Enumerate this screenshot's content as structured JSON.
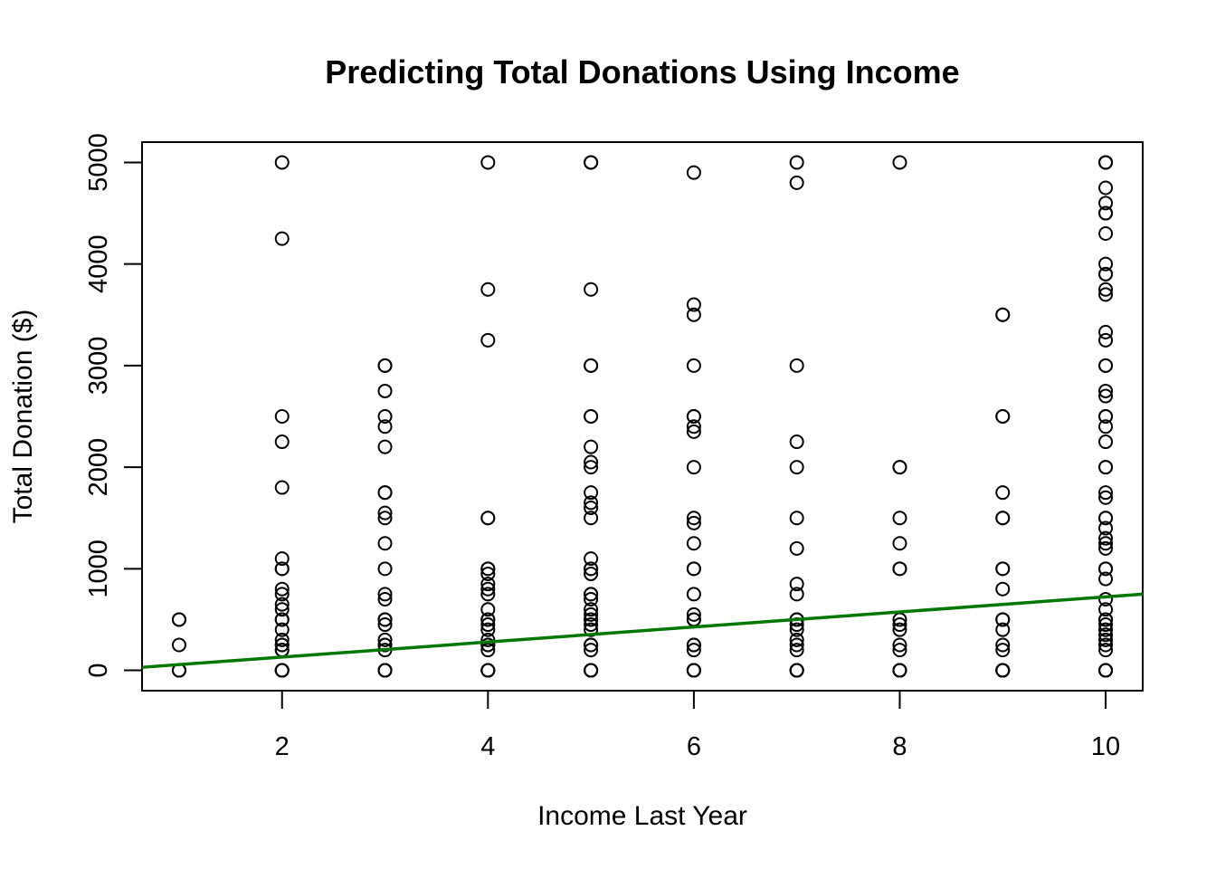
{
  "chart_data": {
    "type": "scatter",
    "title": "Predicting Total Donations Using Income",
    "xlabel": "Income Last Year",
    "ylabel": "Total Donation ($)",
    "xlim": [
      0.64,
      10.36
    ],
    "ylim": [
      -200,
      5200
    ],
    "x_ticks": [
      2,
      4,
      6,
      8,
      10
    ],
    "y_ticks": [
      0,
      1000,
      2000,
      3000,
      4000,
      5000
    ],
    "grid": false,
    "series": [
      {
        "points": [
          [
            1,
            500
          ],
          [
            1,
            500
          ],
          [
            1,
            250
          ],
          [
            1,
            0
          ],
          [
            1,
            0
          ],
          [
            2,
            5000
          ],
          [
            2,
            4250
          ],
          [
            2,
            2500
          ],
          [
            2,
            2250
          ],
          [
            2,
            1800
          ],
          [
            2,
            1100
          ],
          [
            2,
            1000
          ],
          [
            2,
            1000
          ],
          [
            2,
            800
          ],
          [
            2,
            750
          ],
          [
            2,
            650
          ],
          [
            2,
            600
          ],
          [
            2,
            500
          ],
          [
            2,
            500
          ],
          [
            2,
            400
          ],
          [
            2,
            300
          ],
          [
            2,
            250
          ],
          [
            2,
            250
          ],
          [
            2,
            200
          ],
          [
            2,
            200
          ],
          [
            2,
            0
          ],
          [
            2,
            0
          ],
          [
            2,
            0
          ],
          [
            2,
            0
          ],
          [
            3,
            3000
          ],
          [
            3,
            3000
          ],
          [
            3,
            2750
          ],
          [
            3,
            2500
          ],
          [
            3,
            2400
          ],
          [
            3,
            2200
          ],
          [
            3,
            1750
          ],
          [
            3,
            1750
          ],
          [
            3,
            1550
          ],
          [
            3,
            1500
          ],
          [
            3,
            1250
          ],
          [
            3,
            1000
          ],
          [
            3,
            750
          ],
          [
            3,
            700
          ],
          [
            3,
            500
          ],
          [
            3,
            500
          ],
          [
            3,
            450
          ],
          [
            3,
            300
          ],
          [
            3,
            250
          ],
          [
            3,
            250
          ],
          [
            3,
            200
          ],
          [
            3,
            0
          ],
          [
            3,
            0
          ],
          [
            3,
            0
          ],
          [
            3,
            0
          ],
          [
            4,
            5000
          ],
          [
            4,
            3750
          ],
          [
            4,
            3250
          ],
          [
            4,
            1500
          ],
          [
            4,
            1500
          ],
          [
            4,
            1000
          ],
          [
            4,
            1000
          ],
          [
            4,
            950
          ],
          [
            4,
            850
          ],
          [
            4,
            800
          ],
          [
            4,
            750
          ],
          [
            4,
            600
          ],
          [
            4,
            500
          ],
          [
            4,
            500
          ],
          [
            4,
            450
          ],
          [
            4,
            400
          ],
          [
            4,
            300
          ],
          [
            4,
            250
          ],
          [
            4,
            250
          ],
          [
            4,
            200
          ],
          [
            4,
            0
          ],
          [
            4,
            0
          ],
          [
            4,
            0
          ],
          [
            4,
            0
          ],
          [
            5,
            5000
          ],
          [
            5,
            5000
          ],
          [
            5,
            3750
          ],
          [
            5,
            3000
          ],
          [
            5,
            3000
          ],
          [
            5,
            2500
          ],
          [
            5,
            2500
          ],
          [
            5,
            2200
          ],
          [
            5,
            2050
          ],
          [
            5,
            2000
          ],
          [
            5,
            1750
          ],
          [
            5,
            1650
          ],
          [
            5,
            1600
          ],
          [
            5,
            1500
          ],
          [
            5,
            1100
          ],
          [
            5,
            1000
          ],
          [
            5,
            1000
          ],
          [
            5,
            950
          ],
          [
            5,
            750
          ],
          [
            5,
            750
          ],
          [
            5,
            700
          ],
          [
            5,
            600
          ],
          [
            5,
            550
          ],
          [
            5,
            500
          ],
          [
            5,
            500
          ],
          [
            5,
            450
          ],
          [
            5,
            400
          ],
          [
            5,
            250
          ],
          [
            5,
            250
          ],
          [
            5,
            200
          ],
          [
            5,
            0
          ],
          [
            5,
            0
          ],
          [
            5,
            0
          ],
          [
            5,
            0
          ],
          [
            6,
            4900
          ],
          [
            6,
            3600
          ],
          [
            6,
            3500
          ],
          [
            6,
            3000
          ],
          [
            6,
            2500
          ],
          [
            6,
            2500
          ],
          [
            6,
            2400
          ],
          [
            6,
            2350
          ],
          [
            6,
            2000
          ],
          [
            6,
            1500
          ],
          [
            6,
            1450
          ],
          [
            6,
            1250
          ],
          [
            6,
            1000
          ],
          [
            6,
            1000
          ],
          [
            6,
            750
          ],
          [
            6,
            550
          ],
          [
            6,
            500
          ],
          [
            6,
            500
          ],
          [
            6,
            250
          ],
          [
            6,
            250
          ],
          [
            6,
            200
          ],
          [
            6,
            0
          ],
          [
            6,
            0
          ],
          [
            6,
            0
          ],
          [
            6,
            0
          ],
          [
            7,
            5000
          ],
          [
            7,
            4800
          ],
          [
            7,
            3000
          ],
          [
            7,
            2250
          ],
          [
            7,
            2000
          ],
          [
            7,
            1500
          ],
          [
            7,
            1200
          ],
          [
            7,
            850
          ],
          [
            7,
            750
          ],
          [
            7,
            500
          ],
          [
            7,
            500
          ],
          [
            7,
            450
          ],
          [
            7,
            400
          ],
          [
            7,
            300
          ],
          [
            7,
            250
          ],
          [
            7,
            200
          ],
          [
            7,
            0
          ],
          [
            7,
            0
          ],
          [
            7,
            0
          ],
          [
            7,
            0
          ],
          [
            8,
            5000
          ],
          [
            8,
            2000
          ],
          [
            8,
            2000
          ],
          [
            8,
            1500
          ],
          [
            8,
            1250
          ],
          [
            8,
            1000
          ],
          [
            8,
            1000
          ],
          [
            8,
            500
          ],
          [
            8,
            450
          ],
          [
            8,
            400
          ],
          [
            8,
            250
          ],
          [
            8,
            200
          ],
          [
            8,
            0
          ],
          [
            8,
            0
          ],
          [
            8,
            0
          ],
          [
            8,
            0
          ],
          [
            9,
            3500
          ],
          [
            9,
            3500
          ],
          [
            9,
            2500
          ],
          [
            9,
            2500
          ],
          [
            9,
            1750
          ],
          [
            9,
            1500
          ],
          [
            9,
            1500
          ],
          [
            9,
            1000
          ],
          [
            9,
            1000
          ],
          [
            9,
            800
          ],
          [
            9,
            500
          ],
          [
            9,
            500
          ],
          [
            9,
            400
          ],
          [
            9,
            250
          ],
          [
            9,
            200
          ],
          [
            9,
            0
          ],
          [
            9,
            0
          ],
          [
            9,
            0
          ],
          [
            9,
            0
          ],
          [
            10,
            5000
          ],
          [
            10,
            5000
          ],
          [
            10,
            5000
          ],
          [
            10,
            4750
          ],
          [
            10,
            4600
          ],
          [
            10,
            4500
          ],
          [
            10,
            4500
          ],
          [
            10,
            4300
          ],
          [
            10,
            4000
          ],
          [
            10,
            3900
          ],
          [
            10,
            3900
          ],
          [
            10,
            3750
          ],
          [
            10,
            3700
          ],
          [
            10,
            3330
          ],
          [
            10,
            3250
          ],
          [
            10,
            3000
          ],
          [
            10,
            3000
          ],
          [
            10,
            2750
          ],
          [
            10,
            2700
          ],
          [
            10,
            2500
          ],
          [
            10,
            2500
          ],
          [
            10,
            2400
          ],
          [
            10,
            2250
          ],
          [
            10,
            2000
          ],
          [
            10,
            2000
          ],
          [
            10,
            1750
          ],
          [
            10,
            1700
          ],
          [
            10,
            1500
          ],
          [
            10,
            1500
          ],
          [
            10,
            1400
          ],
          [
            10,
            1300
          ],
          [
            10,
            1250
          ],
          [
            10,
            1200
          ],
          [
            10,
            1000
          ],
          [
            10,
            1000
          ],
          [
            10,
            900
          ],
          [
            10,
            700
          ],
          [
            10,
            600
          ],
          [
            10,
            500
          ],
          [
            10,
            500
          ],
          [
            10,
            450
          ],
          [
            10,
            400
          ],
          [
            10,
            350
          ],
          [
            10,
            300
          ],
          [
            10,
            250
          ],
          [
            10,
            200
          ],
          [
            10,
            0
          ],
          [
            10,
            0
          ],
          [
            10,
            0
          ],
          [
            10,
            0
          ]
        ]
      }
    ],
    "regression_line": {
      "color": "#007700",
      "x0": 0.64,
      "y0": 30,
      "x1": 10.36,
      "y1": 750
    },
    "marker_color": "#000000"
  }
}
